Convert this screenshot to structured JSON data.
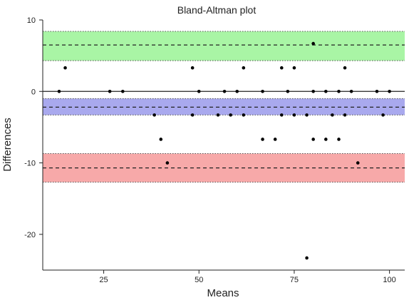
{
  "chart_data": {
    "type": "scatter",
    "title": "Bland-Altman plot",
    "xlabel": "Means",
    "ylabel": "Differences",
    "xlim": [
      9,
      104
    ],
    "ylim": [
      -25,
      10
    ],
    "xticks": [
      25,
      50,
      75,
      100
    ],
    "yticks": [
      10,
      0,
      -10,
      -20
    ],
    "zero_line": 0,
    "bands": [
      {
        "name": "upper limit of agreement",
        "center": 6.5,
        "low": 4.3,
        "high": 8.4,
        "color": "#a9f5a5"
      },
      {
        "name": "mean difference",
        "center": -2.2,
        "low": -3.3,
        "high": -1.0,
        "color": "#a9a9ee"
      },
      {
        "name": "lower limit of agreement",
        "center": -10.7,
        "low": -12.7,
        "high": -8.7,
        "color": "#f7a9a9"
      }
    ],
    "points": [
      {
        "x": 13.3,
        "y": 0
      },
      {
        "x": 14.9,
        "y": 3.3
      },
      {
        "x": 26.6,
        "y": 0
      },
      {
        "x": 30.0,
        "y": 0
      },
      {
        "x": 38.3,
        "y": -3.3
      },
      {
        "x": 40.0,
        "y": -6.7
      },
      {
        "x": 41.7,
        "y": -10.0
      },
      {
        "x": 48.3,
        "y": 3.3
      },
      {
        "x": 48.3,
        "y": -3.3
      },
      {
        "x": 50.0,
        "y": 0
      },
      {
        "x": 55.0,
        "y": -3.3
      },
      {
        "x": 56.7,
        "y": 0
      },
      {
        "x": 58.3,
        "y": -3.3
      },
      {
        "x": 60.0,
        "y": 0
      },
      {
        "x": 61.7,
        "y": -3.3
      },
      {
        "x": 61.7,
        "y": 3.3
      },
      {
        "x": 66.7,
        "y": 0
      },
      {
        "x": 66.7,
        "y": -6.7
      },
      {
        "x": 70.0,
        "y": -6.7
      },
      {
        "x": 71.7,
        "y": 3.3
      },
      {
        "x": 71.7,
        "y": -3.3
      },
      {
        "x": 73.3,
        "y": 0
      },
      {
        "x": 75.0,
        "y": 3.3
      },
      {
        "x": 75.0,
        "y": -3.3
      },
      {
        "x": 78.3,
        "y": -23.3
      },
      {
        "x": 78.3,
        "y": -3.3
      },
      {
        "x": 80.0,
        "y": 6.7
      },
      {
        "x": 80.0,
        "y": 0
      },
      {
        "x": 80.0,
        "y": -6.7
      },
      {
        "x": 83.3,
        "y": 0
      },
      {
        "x": 83.3,
        "y": -6.7
      },
      {
        "x": 85.0,
        "y": -3.3
      },
      {
        "x": 86.7,
        "y": 0
      },
      {
        "x": 86.7,
        "y": -6.7
      },
      {
        "x": 88.3,
        "y": 3.3
      },
      {
        "x": 88.3,
        "y": -3.3
      },
      {
        "x": 90.0,
        "y": 0
      },
      {
        "x": 91.7,
        "y": -10.0
      },
      {
        "x": 96.7,
        "y": 0
      },
      {
        "x": 98.3,
        "y": -3.3
      },
      {
        "x": 100.0,
        "y": 0
      }
    ],
    "grid": false,
    "legend": "none"
  }
}
